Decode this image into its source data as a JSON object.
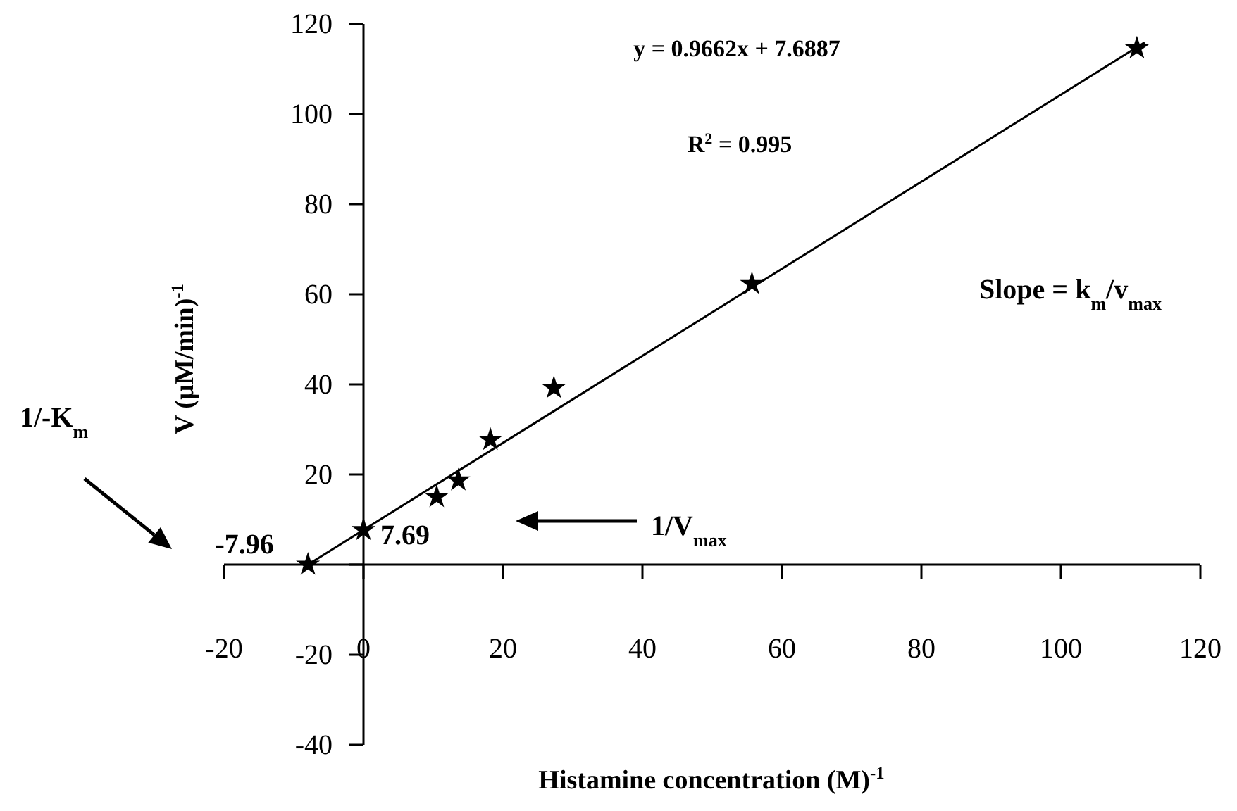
{
  "chart_data": {
    "type": "scatter",
    "xlabel": "Histamine concentration (M)$^{-1}$",
    "ylabel": "V (µM/min)$^{-1}$",
    "xlim": [
      -20,
      120
    ],
    "xticks": [
      -20,
      0,
      20,
      40,
      60,
      80,
      100,
      120
    ],
    "ylim": [
      -40,
      120
    ],
    "yticks": [
      -40,
      -20,
      {
        "value": 0,
        "label": null
      },
      20,
      40,
      60,
      80,
      100,
      120
    ],
    "grid": false,
    "series": [
      {
        "marker": "star",
        "color": "#000000",
        "x": [
          -7.96,
          0,
          10.5,
          13.6,
          18.2,
          27.3,
          55.7,
          110.9
        ],
        "values": [
          0,
          7.69,
          15,
          18.7,
          27.7,
          39.2,
          62.3,
          114.6
        ]
      },
      {
        "type": "line",
        "marker": "none",
        "line_style": "solid",
        "color": "#000000",
        "x": [
          -7.96,
          112
        ],
        "values": [
          0,
          115.9
        ]
      }
    ],
    "annotations": [
      "y = 0.9662x + 7.6887",
      "R$^{2}$ = 0.995",
      "Slope = k$_{m}$/v$_{max}$",
      "1/-K$_{m}$",
      {
        "text": "-7.96",
        "x": -7.96,
        "y": 0
      },
      {
        "text": "7.69",
        "x": 0,
        "y": 7.69
      },
      "1/V$_{max}$"
    ]
  }
}
